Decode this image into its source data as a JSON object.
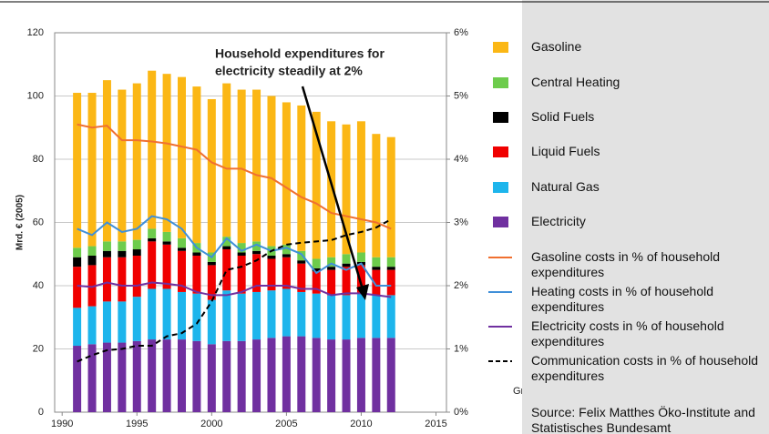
{
  "chart_data": {
    "type": "bar",
    "y_label": "Mrd. € (2005)",
    "annotation": [
      "Household expenditures for",
      "electricity steadily at 2%"
    ],
    "partial_text": "Graf",
    "source": "Source: Felix Matthes Öko-Institute and Statistisches Bundesamt",
    "x": [
      1991,
      1992,
      1993,
      1994,
      1995,
      1996,
      1997,
      1998,
      1999,
      2000,
      2001,
      2002,
      2003,
      2004,
      2005,
      2006,
      2007,
      2008,
      2009,
      2010,
      2011,
      2012
    ],
    "xlim": [
      1989.5,
      2015.7
    ],
    "xticks": [
      1990,
      1995,
      2000,
      2005,
      2010,
      2015
    ],
    "ylim": [
      0,
      120
    ],
    "yticks": [
      0,
      20,
      40,
      60,
      80,
      100,
      120
    ],
    "y2lim": [
      0,
      6
    ],
    "y2ticks": [
      {
        "value": 0,
        "label": "0%"
      },
      {
        "value": 1,
        "label": "1%"
      },
      {
        "value": 2,
        "label": "2%"
      },
      {
        "value": 3,
        "label": "3%"
      },
      {
        "value": 4,
        "label": "4%"
      },
      {
        "value": 5,
        "label": "5%"
      },
      {
        "value": 6,
        "label": "6%"
      }
    ],
    "grid": true,
    "series": [
      {
        "name": "Gasoline",
        "color": "#fbb715",
        "kind": "bar",
        "values": [
          49,
          48.5,
          51,
          48,
          49.5,
          50,
          50,
          51,
          49.5,
          48.5,
          48.5,
          48.5,
          48,
          47.5,
          45,
          46,
          46.5,
          43,
          41,
          41.5,
          39,
          38
        ]
      },
      {
        "name": "Central Heating",
        "color": "#6dcc4c",
        "kind": "bar",
        "values": [
          3,
          3,
          3,
          3,
          3,
          3,
          3,
          3,
          3,
          3,
          3,
          3,
          3,
          3,
          3,
          3,
          3,
          3,
          3,
          3,
          3,
          3
        ]
      },
      {
        "name": "Solid Fuels",
        "color": "#000000",
        "kind": "bar",
        "values": [
          3,
          3,
          2,
          2,
          2,
          1,
          1,
          1,
          1,
          1,
          1,
          1,
          1,
          1,
          1,
          1,
          1,
          1,
          1,
          1,
          1,
          1
        ]
      },
      {
        "name": "Liquid Fuels",
        "color": "#f00000",
        "kind": "bar",
        "values": [
          13,
          13,
          14,
          14,
          13,
          15,
          14,
          13,
          12,
          11,
          13,
          12,
          12,
          10,
          10,
          9,
          7,
          8,
          9,
          9,
          8,
          8
        ]
      },
      {
        "name": "Natural Gas",
        "color": "#1db5ec",
        "kind": "bar",
        "values": [
          12,
          12,
          13,
          13,
          14,
          16,
          16,
          15,
          15,
          14,
          16,
          15,
          15,
          15,
          15,
          14,
          14,
          14,
          14,
          14,
          13.5,
          13.5
        ]
      },
      {
        "name": "Electricity",
        "color": "#7030a0",
        "kind": "bar",
        "values": [
          21,
          21.5,
          22,
          22,
          22.5,
          23,
          23,
          23,
          22.5,
          21.5,
          22.5,
          22.5,
          23,
          23.5,
          24,
          24,
          23.5,
          23,
          23,
          23.5,
          23.5,
          23.5
        ]
      },
      {
        "name": "Gasoline costs in % of household expenditures",
        "color": "#f07030",
        "kind": "line",
        "axis": "y2",
        "values": [
          4.55,
          4.5,
          4.53,
          4.3,
          4.3,
          4.28,
          4.25,
          4.2,
          4.15,
          3.95,
          3.85,
          3.85,
          3.75,
          3.7,
          3.55,
          3.4,
          3.3,
          3.15,
          3.1,
          3.05,
          3.0,
          2.9
        ]
      },
      {
        "name": "Heating costs in % of household expenditures",
        "color": "#3f8fd8",
        "kind": "line",
        "axis": "y2",
        "values": [
          2.9,
          2.8,
          3.0,
          2.85,
          2.9,
          3.1,
          3.05,
          2.9,
          2.6,
          2.45,
          2.75,
          2.55,
          2.65,
          2.55,
          2.6,
          2.5,
          2.2,
          2.35,
          2.25,
          2.35,
          2.0,
          2.0
        ]
      },
      {
        "name": "Electricity costs in % of household expenditures",
        "color": "#7030a0",
        "kind": "line",
        "axis": "y2",
        "values": [
          2.0,
          1.98,
          2.05,
          2.0,
          2.0,
          2.05,
          2.03,
          2.0,
          1.9,
          1.85,
          1.85,
          1.9,
          2.0,
          2.0,
          2.0,
          1.95,
          1.95,
          1.85,
          1.88,
          1.88,
          1.85,
          1.82
        ]
      },
      {
        "name": "Communication costs in % of household expenditures",
        "color": "#000000",
        "kind": "line",
        "axis": "y2",
        "dashed": true,
        "values": [
          0.8,
          0.9,
          0.98,
          1.0,
          1.05,
          1.05,
          1.2,
          1.25,
          1.4,
          1.75,
          2.25,
          2.3,
          2.4,
          2.55,
          2.65,
          2.68,
          2.7,
          2.72,
          2.8,
          2.85,
          2.92,
          3.05
        ]
      }
    ]
  }
}
